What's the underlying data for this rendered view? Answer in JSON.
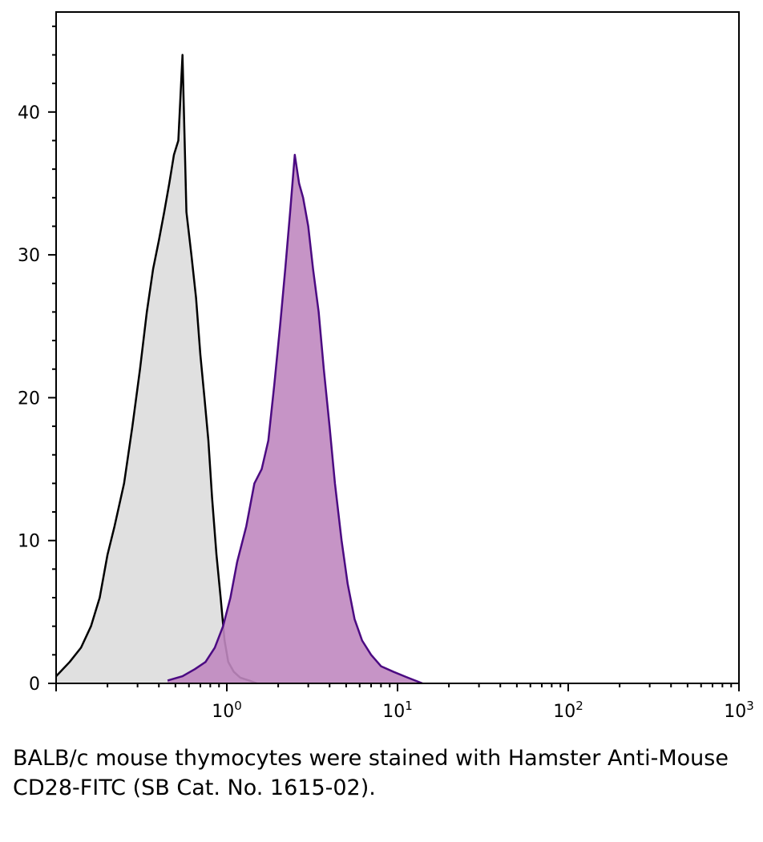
{
  "caption": "BALB/c mouse thymocytes were stained with Hamster Anti-Mouse CD28-FITC (SB Cat. No. 1615-02).",
  "chart_data": {
    "type": "area",
    "x_scale": "log",
    "xlim": [
      0.1,
      1000
    ],
    "ylim": [
      0,
      47
    ],
    "x_ticks": [
      {
        "value": 1,
        "base": "10",
        "exp": "0"
      },
      {
        "value": 10,
        "base": "10",
        "exp": "1"
      },
      {
        "value": 100,
        "base": "10",
        "exp": "2"
      },
      {
        "value": 1000,
        "base": "10",
        "exp": "3"
      }
    ],
    "y_ticks": [
      0,
      10,
      20,
      30,
      40
    ],
    "grid": false,
    "legend": "none",
    "series": [
      {
        "fill": "#e0e0e0",
        "stroke": "#000000",
        "x": [
          0.1,
          0.12,
          0.14,
          0.16,
          0.18,
          0.2,
          0.22,
          0.25,
          0.28,
          0.31,
          0.34,
          0.37,
          0.4,
          0.43,
          0.46,
          0.49,
          0.52,
          0.55,
          0.58,
          0.62,
          0.66,
          0.7,
          0.74,
          0.78,
          0.82,
          0.87,
          0.92,
          0.97,
          1.02,
          1.1,
          1.2,
          1.35,
          1.5
        ],
        "y": [
          0.5,
          1.5,
          2.5,
          4,
          6,
          9,
          11,
          14,
          18,
          22,
          26,
          29,
          31,
          33,
          35,
          37,
          38,
          44,
          33,
          30,
          27,
          23,
          20,
          17,
          13,
          9,
          6,
          3,
          1.5,
          0.8,
          0.4,
          0.2,
          0
        ]
      },
      {
        "fill": "#c088c0",
        "stroke": "#4b0a82",
        "x": [
          0.45,
          0.55,
          0.65,
          0.75,
          0.85,
          0.95,
          1.05,
          1.15,
          1.3,
          1.45,
          1.6,
          1.75,
          1.9,
          2.05,
          2.2,
          2.35,
          2.5,
          2.65,
          2.8,
          3.0,
          3.2,
          3.45,
          3.7,
          4.0,
          4.3,
          4.7,
          5.1,
          5.6,
          6.2,
          7.0,
          8.0,
          9.5,
          11.5,
          14
        ],
        "y": [
          0.2,
          0.5,
          1,
          1.5,
          2.5,
          4,
          6,
          8.5,
          11,
          14,
          15,
          17,
          21,
          25,
          29,
          33,
          37,
          35,
          34,
          32,
          29,
          26,
          22,
          18,
          14,
          10,
          7,
          4.5,
          3,
          2,
          1.2,
          0.8,
          0.4,
          0
        ]
      }
    ]
  }
}
